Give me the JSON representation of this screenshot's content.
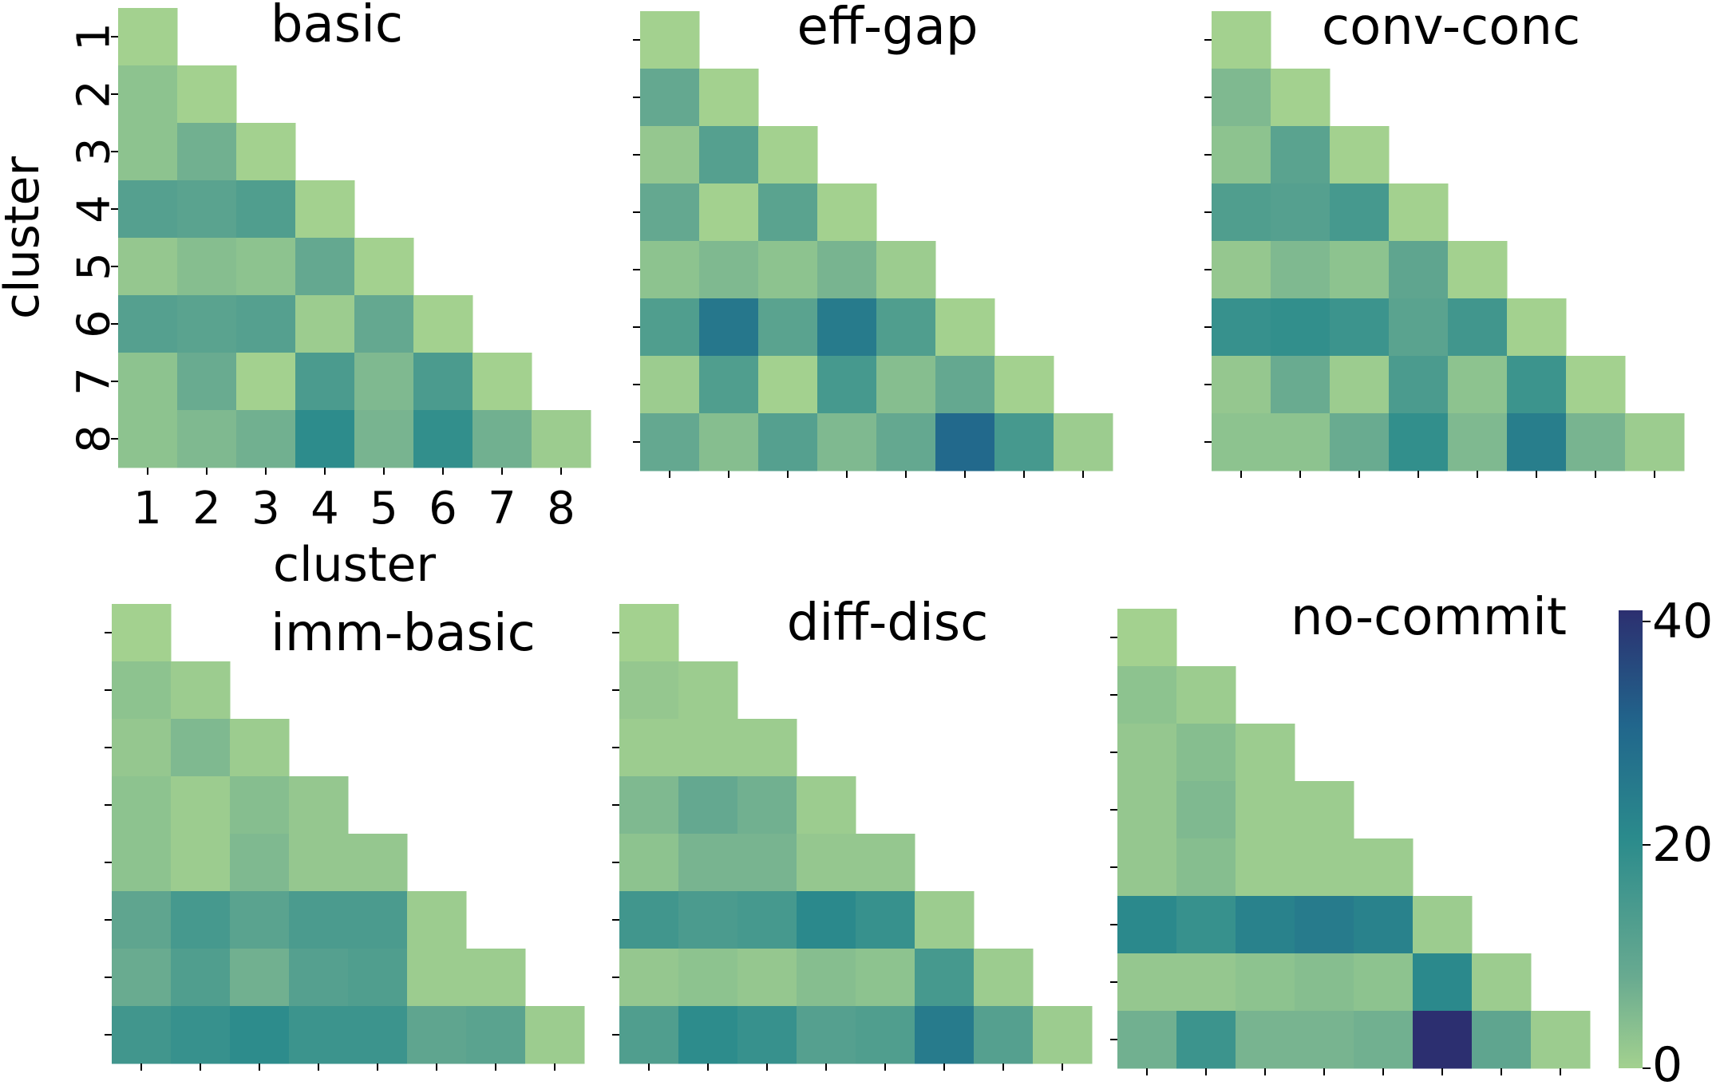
{
  "colorbar": {
    "min": 0,
    "max": 41,
    "ticks": [
      "0",
      "20",
      "40"
    ],
    "tick_values": [
      0,
      20,
      40
    ],
    "colors": [
      "#a3d18f",
      "#68aa90",
      "#2b8b8c",
      "#21668c",
      "#2c2f70"
    ]
  },
  "axis": {
    "xlabel": "cluster",
    "ylabel": "cluster",
    "tick_labels": [
      "1",
      "2",
      "3",
      "4",
      "5",
      "6",
      "7",
      "8"
    ]
  },
  "chart_data": [
    {
      "type": "heatmap",
      "title": "basic",
      "xlabel": "cluster",
      "ylabel": "cluster",
      "categories": [
        "1",
        "2",
        "3",
        "4",
        "5",
        "6",
        "7",
        "8"
      ],
      "values": [
        [
          0
        ],
        [
          3,
          0
        ],
        [
          3,
          7,
          0
        ],
        [
          12,
          11,
          13,
          0
        ],
        [
          2,
          4,
          3,
          9,
          0
        ],
        [
          12,
          11,
          12,
          1,
          9,
          0
        ],
        [
          3,
          8,
          0,
          14,
          5,
          14,
          0
        ],
        [
          3,
          5,
          7,
          20,
          6,
          19,
          7,
          1
        ]
      ]
    },
    {
      "type": "heatmap",
      "title": "eff-gap",
      "xlabel": "",
      "ylabel": "",
      "categories": [
        "1",
        "2",
        "3",
        "4",
        "5",
        "6",
        "7",
        "8"
      ],
      "values": [
        [
          0
        ],
        [
          9,
          0
        ],
        [
          2,
          12,
          0
        ],
        [
          9,
          0,
          11,
          0
        ],
        [
          3,
          5,
          3,
          6,
          1
        ],
        [
          13,
          26,
          11,
          25,
          13,
          0
        ],
        [
          1,
          13,
          0,
          15,
          4,
          9,
          0
        ],
        [
          9,
          4,
          12,
          5,
          9,
          30,
          15,
          1
        ]
      ]
    },
    {
      "type": "heatmap",
      "title": "conv-conc",
      "xlabel": "",
      "ylabel": "",
      "categories": [
        "1",
        "2",
        "3",
        "4",
        "5",
        "6",
        "7",
        "8"
      ],
      "values": [
        [
          0
        ],
        [
          5,
          0
        ],
        [
          3,
          11,
          0
        ],
        [
          13,
          12,
          15,
          0
        ],
        [
          2,
          5,
          3,
          10,
          0
        ],
        [
          18,
          19,
          17,
          11,
          16,
          0
        ],
        [
          2,
          8,
          1,
          14,
          3,
          17,
          0
        ],
        [
          3,
          3,
          8,
          19,
          5,
          24,
          6,
          1
        ]
      ]
    },
    {
      "type": "heatmap",
      "title": "imm-basic",
      "xlabel": "",
      "ylabel": "",
      "categories": [
        "1",
        "2",
        "3",
        "4",
        "5",
        "6",
        "7",
        "8"
      ],
      "values": [
        [
          0
        ],
        [
          3,
          1
        ],
        [
          2,
          5,
          1
        ],
        [
          3,
          1,
          4,
          2
        ],
        [
          3,
          1,
          5,
          2,
          2
        ],
        [
          10,
          15,
          11,
          14,
          14,
          1
        ],
        [
          8,
          13,
          7,
          12,
          13,
          1,
          1
        ],
        [
          16,
          18,
          20,
          17,
          17,
          10,
          11,
          1
        ]
      ]
    },
    {
      "type": "heatmap",
      "title": "diff-disc",
      "xlabel": "",
      "ylabel": "",
      "categories": [
        "1",
        "2",
        "3",
        "4",
        "5",
        "6",
        "7",
        "8"
      ],
      "values": [
        [
          0
        ],
        [
          2,
          1
        ],
        [
          1,
          1,
          1
        ],
        [
          5,
          9,
          7,
          1
        ],
        [
          3,
          6,
          6,
          2,
          2
        ],
        [
          16,
          14,
          15,
          21,
          18,
          1
        ],
        [
          2,
          3,
          2,
          4,
          3,
          15,
          1
        ],
        [
          13,
          20,
          18,
          12,
          13,
          25,
          12,
          1
        ]
      ]
    },
    {
      "type": "heatmap",
      "title": "no-commit",
      "xlabel": "",
      "ylabel": "",
      "categories": [
        "1",
        "2",
        "3",
        "4",
        "5",
        "6",
        "7",
        "8"
      ],
      "values": [
        [
          0
        ],
        [
          3,
          1
        ],
        [
          2,
          4,
          1
        ],
        [
          2,
          5,
          1,
          1
        ],
        [
          2,
          4,
          1,
          1,
          1
        ],
        [
          21,
          18,
          23,
          25,
          23,
          1
        ],
        [
          2,
          2,
          3,
          4,
          3,
          21,
          1
        ],
        [
          7,
          17,
          6,
          6,
          7,
          41,
          10,
          1
        ]
      ]
    }
  ]
}
